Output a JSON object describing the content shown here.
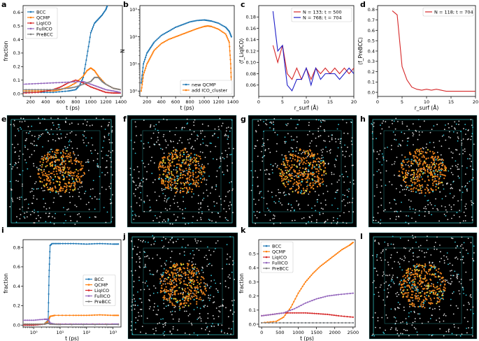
{
  "colors": {
    "BCC": "#1f77b4",
    "QCMP": "#ff7f0e",
    "LiqICO": "#d62728",
    "FullICO": "#9467bd",
    "PreBCC": "#7f7f7f",
    "blue_line": "#1f1fc8",
    "red_line": "#d62728",
    "snap_bg": "#000000",
    "box_line": "#2fb5b5",
    "atom_orange": "#e9801c",
    "atom_yellow": "#e3d83a",
    "atom_red": "#e0331f",
    "atom_cyan": "#34c4d6",
    "atom_white": "#d8d8d8"
  },
  "panel_labels": [
    "a",
    "b",
    "c",
    "d",
    "e",
    "f",
    "g",
    "h",
    "i",
    "j",
    "k",
    "l"
  ],
  "snapshots": [
    {
      "label": "e",
      "icon": "atom-snapshot-icon"
    },
    {
      "label": "f",
      "icon": "atom-snapshot-icon"
    },
    {
      "label": "g",
      "icon": "atom-snapshot-icon"
    },
    {
      "label": "h",
      "icon": "atom-snapshot-icon"
    },
    {
      "label": "j",
      "icon": "atom-snapshot-icon"
    },
    {
      "label": "l",
      "icon": "atom-snapshot-icon"
    }
  ],
  "chart_data": [
    {
      "label": "a",
      "type": "line",
      "xlabel": "t (ps)",
      "ylabel": "fraction",
      "xlim": [
        100,
        1420
      ],
      "ylim": [
        -0.02,
        0.65
      ],
      "xticks": [
        200,
        400,
        600,
        800,
        1000,
        1200,
        1400
      ],
      "yticks": [
        0.0,
        0.1,
        0.2,
        0.3,
        0.4,
        0.5,
        0.6
      ],
      "ytick_labels": [
        "0.0",
        "0.1",
        "0.2",
        "0.3",
        "0.4",
        "0.5",
        "0.6"
      ],
      "legend": [
        "BCC",
        "QCMP",
        "LiqICO",
        "FullICO",
        "PreBCC"
      ],
      "legend_loc": "upper-left",
      "series": [
        {
          "name": "BCC",
          "color_key": "BCC",
          "x": [
            100,
            300,
            500,
            700,
            800,
            850,
            900,
            950,
            1000,
            1050,
            1100,
            1150,
            1200,
            1220
          ],
          "y": [
            0.01,
            0.01,
            0.01,
            0.02,
            0.03,
            0.06,
            0.12,
            0.28,
            0.45,
            0.52,
            0.55,
            0.58,
            0.62,
            0.65
          ]
        },
        {
          "name": "QCMP",
          "color_key": "QCMP",
          "x": [
            100,
            300,
            500,
            600,
            700,
            800,
            900,
            950,
            1000,
            1050,
            1100,
            1200,
            1300,
            1390
          ],
          "y": [
            0.02,
            0.02,
            0.02,
            0.03,
            0.05,
            0.08,
            0.13,
            0.17,
            0.19,
            0.17,
            0.13,
            0.07,
            0.04,
            0.03
          ]
        },
        {
          "name": "LiqICO",
          "color_key": "LiqICO",
          "x": [
            100,
            300,
            500,
            600,
            700,
            800,
            900,
            1000,
            1100,
            1200,
            1300,
            1390
          ],
          "y": [
            0.005,
            0.01,
            0.03,
            0.05,
            0.08,
            0.1,
            0.08,
            0.05,
            0.03,
            0.01,
            0.005,
            0.005
          ]
        },
        {
          "name": "FullICO",
          "color_key": "FullICO",
          "x": [
            100,
            300,
            500,
            700,
            900,
            1000,
            1100,
            1200,
            1300,
            1390
          ],
          "y": [
            0.07,
            0.075,
            0.08,
            0.085,
            0.09,
            0.07,
            0.05,
            0.03,
            0.02,
            0.01
          ]
        },
        {
          "name": "PreBCC",
          "color_key": "PreBCC",
          "x": [
            100,
            300,
            500,
            700,
            800,
            900,
            1000,
            1050,
            1100,
            1150,
            1200,
            1300,
            1390
          ],
          "y": [
            0.03,
            0.03,
            0.03,
            0.04,
            0.05,
            0.07,
            0.09,
            0.12,
            0.12,
            0.09,
            0.07,
            0.04,
            0.03
          ]
        }
      ]
    },
    {
      "label": "b",
      "type": "line",
      "xlabel": "t (ps)",
      "ylabel": "N",
      "yscale": "log",
      "xlim": [
        100,
        1420
      ],
      "ylim_exp": [
        -0.2,
        3.15
      ],
      "xticks": [
        200,
        400,
        600,
        800,
        1000,
        1200,
        1400
      ],
      "yticks": [
        0,
        1,
        2,
        3
      ],
      "ytick_labels": [
        "10⁰",
        "10¹",
        "10²",
        "10³"
      ],
      "legend": [
        "new QCMP",
        "add ICO_cluster"
      ],
      "legend_loc": "lower-right",
      "series": [
        {
          "name": "new QCMP",
          "color_key": "BCC",
          "x": [
            120,
            150,
            200,
            250,
            300,
            400,
            500,
            600,
            700,
            800,
            900,
            1000,
            1050,
            1100,
            1200,
            1300,
            1350,
            1380
          ],
          "y_exp": [
            0.3,
            1.0,
            1.4,
            1.6,
            1.8,
            2.05,
            2.2,
            2.35,
            2.45,
            2.55,
            2.6,
            2.62,
            2.6,
            2.58,
            2.5,
            2.35,
            2.2,
            2.0
          ]
        },
        {
          "name": "add ICO_cluster",
          "color_key": "QCMP",
          "x": [
            120,
            150,
            200,
            250,
            300,
            400,
            500,
            600,
            700,
            800,
            900,
            1000,
            1050,
            1100,
            1200,
            1300,
            1350,
            1370,
            1380
          ],
          "y_exp": [
            0.0,
            0.6,
            1.0,
            1.25,
            1.5,
            1.75,
            1.9,
            2.0,
            2.1,
            2.2,
            2.3,
            2.38,
            2.4,
            2.38,
            2.28,
            2.1,
            1.8,
            1.0,
            0.2
          ]
        }
      ]
    },
    {
      "label": "c",
      "type": "line",
      "xlabel": "r_surf (Å)",
      "ylabel": "⟨f_LiqICO⟩",
      "xlim": [
        0,
        20
      ],
      "ylim": [
        0.04,
        0.2
      ],
      "xticks": [
        0,
        5,
        10,
        15,
        20
      ],
      "yticks": [
        0.06,
        0.08,
        0.1,
        0.12,
        0.14,
        0.16,
        0.18
      ],
      "ytick_labels": [
        "0.06",
        "0.08",
        "0.10",
        "0.12",
        "0.14",
        "0.16",
        "0.18"
      ],
      "legend": [
        "N = 133; t = 500",
        "N = 768; t = 704"
      ],
      "legend_loc": "upper-right",
      "series": [
        {
          "name": "N = 133; t = 500",
          "color_key": "red_line",
          "x": [
            3,
            4,
            5,
            6,
            7,
            8,
            9,
            10,
            11,
            12,
            13,
            14,
            15,
            16,
            17,
            18,
            19,
            20
          ],
          "y": [
            0.13,
            0.1,
            0.13,
            0.08,
            0.07,
            0.09,
            0.07,
            0.09,
            0.07,
            0.09,
            0.08,
            0.09,
            0.08,
            0.09,
            0.08,
            0.09,
            0.08,
            0.09
          ]
        },
        {
          "name": "N = 768; t = 704",
          "color_key": "blue_line",
          "x": [
            3,
            4,
            5,
            6,
            7,
            8,
            9,
            10,
            11,
            12,
            13,
            14,
            15,
            16,
            17,
            18,
            19,
            20
          ],
          "y": [
            0.19,
            0.12,
            0.13,
            0.06,
            0.05,
            0.07,
            0.07,
            0.09,
            0.06,
            0.09,
            0.07,
            0.08,
            0.08,
            0.08,
            0.07,
            0.08,
            0.09,
            0.08
          ]
        }
      ]
    },
    {
      "label": "d",
      "type": "line",
      "xlabel": "r_surf (Å)",
      "ylabel": "⟨f_PreBCC⟩",
      "xlim": [
        0,
        20
      ],
      "ylim": [
        -0.04,
        0.84
      ],
      "xticks": [
        0,
        5,
        10,
        15,
        20
      ],
      "yticks": [
        0.0,
        0.1,
        0.2,
        0.3,
        0.4,
        0.5,
        0.6,
        0.7,
        0.8
      ],
      "ytick_labels": [
        "0.0",
        "0.1",
        "0.2",
        "0.3",
        "0.4",
        "0.5",
        "0.6",
        "0.7",
        "0.8"
      ],
      "legend": [
        "N = 118; t = 704"
      ],
      "legend_loc": "upper-right",
      "series": [
        {
          "name": "N = 118; t = 704",
          "color_key": "red_line",
          "x": [
            3,
            4,
            5,
            6,
            7,
            8,
            9,
            10,
            11,
            12,
            13,
            14,
            15,
            16,
            17,
            18,
            19,
            20
          ],
          "y": [
            0.79,
            0.75,
            0.25,
            0.12,
            0.05,
            0.03,
            0.02,
            0.03,
            0.02,
            0.03,
            0.02,
            0.01,
            0.01,
            0.01,
            0.01,
            0.01,
            0.01,
            0.01
          ]
        }
      ]
    },
    {
      "label": "i",
      "type": "line",
      "xlabel": "t (ps)",
      "ylabel": "fraction",
      "xscale": "log",
      "xlim_exp": [
        -0.4,
        3.3
      ],
      "ylim": [
        -0.02,
        0.88
      ],
      "xticks": [
        0,
        1,
        2,
        3
      ],
      "xtick_labels": [
        "10⁰",
        "10¹",
        "10²",
        "10³"
      ],
      "yticks": [
        0.0,
        0.2,
        0.4,
        0.6,
        0.8
      ],
      "ytick_labels": [
        "0.0",
        "0.2",
        "0.4",
        "0.6",
        "0.8"
      ],
      "legend": [
        "BCC",
        "QCMP",
        "LiqICO",
        "FullICO",
        "PreBCC"
      ],
      "legend_loc": "center-right",
      "series": [
        {
          "name": "BCC",
          "color_key": "BCC",
          "x_exp": [
            -0.4,
            0.0,
            0.4,
            0.55,
            0.58,
            0.62,
            0.7,
            1.0,
            1.5,
            2.0,
            2.5,
            3.0,
            3.2
          ],
          "y": [
            0.0,
            0.0,
            0.01,
            0.05,
            0.5,
            0.82,
            0.84,
            0.84,
            0.84,
            0.835,
            0.84,
            0.835,
            0.835
          ]
        },
        {
          "name": "QCMP",
          "color_key": "QCMP",
          "x_exp": [
            -0.4,
            0.0,
            0.4,
            0.55,
            0.62,
            0.8,
            1.5,
            2.0,
            2.5,
            3.0,
            3.2
          ],
          "y": [
            0.01,
            0.01,
            0.01,
            0.04,
            0.09,
            0.1,
            0.1,
            0.1,
            0.105,
            0.1,
            0.1
          ]
        },
        {
          "name": "LiqICO",
          "color_key": "LiqICO",
          "x_exp": [
            -0.4,
            0.0,
            0.4,
            0.55,
            0.65,
            1.0,
            2.0,
            3.2
          ],
          "y": [
            0.0,
            0.0,
            0.01,
            0.02,
            0.01,
            0.01,
            0.01,
            0.01
          ]
        },
        {
          "name": "FullICO",
          "color_key": "FullICO",
          "x_exp": [
            -0.4,
            0.0,
            0.4,
            0.55,
            0.62,
            0.8,
            1.5,
            2.0,
            3.0,
            3.2
          ],
          "y": [
            0.05,
            0.05,
            0.06,
            0.06,
            0.02,
            0.01,
            0.01,
            0.01,
            0.01,
            0.01
          ]
        },
        {
          "name": "PreBCC",
          "color_key": "PreBCC",
          "x_exp": [
            -0.4,
            0.0,
            0.4,
            0.55,
            0.62,
            1.0,
            3.2
          ],
          "y": [
            0.01,
            0.01,
            0.01,
            0.02,
            0.01,
            0.005,
            0.005
          ]
        }
      ]
    },
    {
      "label": "k",
      "type": "line",
      "xlabel": "t (ps)",
      "ylabel": "fraction",
      "xlim": [
        -80,
        2560
      ],
      "ylim": [
        -0.02,
        0.6
      ],
      "xticks": [
        0,
        500,
        1000,
        1500,
        2000,
        2500
      ],
      "yticks": [
        0.0,
        0.1,
        0.2,
        0.3,
        0.4,
        0.5
      ],
      "ytick_labels": [
        "0.0",
        "0.1",
        "0.2",
        "0.3",
        "0.4",
        "0.5"
      ],
      "legend": [
        "BCC",
        "QCMP",
        "LiqICO",
        "FullICO",
        "PreBCC"
      ],
      "legend_loc": "upper-left",
      "series": [
        {
          "name": "BCC",
          "color_key": "BCC",
          "x": [
            0,
            500,
            1000,
            1500,
            2000,
            2500
          ],
          "y": [
            0.01,
            0.01,
            0.01,
            0.01,
            0.01,
            0.01
          ]
        },
        {
          "name": "QCMP",
          "color_key": "QCMP",
          "x": [
            0,
            400,
            600,
            800,
            1000,
            1200,
            1400,
            1600,
            1800,
            2000,
            2200,
            2400,
            2500
          ],
          "y": [
            0.01,
            0.02,
            0.05,
            0.12,
            0.22,
            0.3,
            0.36,
            0.41,
            0.45,
            0.49,
            0.53,
            0.56,
            0.58
          ]
        },
        {
          "name": "LiqICO",
          "color_key": "LiqICO",
          "x": [
            0,
            300,
            600,
            900,
            1200,
            1500,
            1800,
            2100,
            2500
          ],
          "y": [
            0.06,
            0.07,
            0.08,
            0.08,
            0.08,
            0.075,
            0.07,
            0.06,
            0.05
          ]
        },
        {
          "name": "FullICO",
          "color_key": "FullICO",
          "x": [
            0,
            300,
            600,
            900,
            1200,
            1500,
            1800,
            2100,
            2500
          ],
          "y": [
            0.06,
            0.07,
            0.08,
            0.11,
            0.15,
            0.18,
            0.2,
            0.21,
            0.22
          ]
        },
        {
          "name": "PreBCC",
          "color_key": "PreBCC",
          "x": [
            0,
            500,
            1000,
            1500,
            2000,
            2500
          ],
          "y": [
            0.01,
            0.01,
            0.01,
            0.01,
            0.01,
            0.01
          ]
        }
      ]
    }
  ]
}
